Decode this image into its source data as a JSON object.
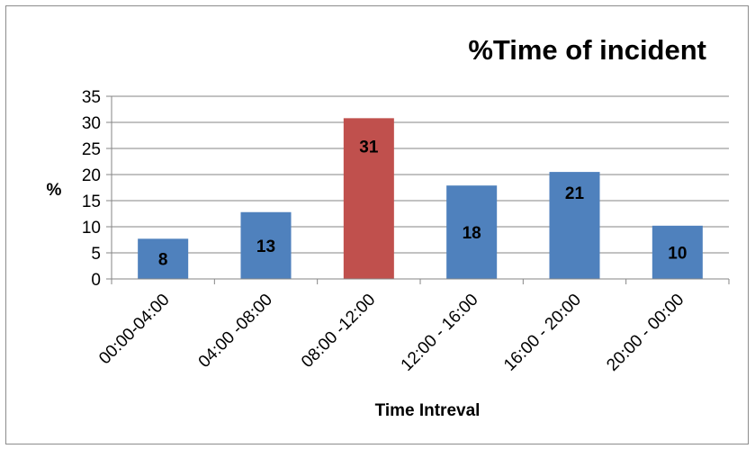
{
  "chart_data": {
    "type": "bar",
    "title": "%Time of incident",
    "xlabel": "Time Intreval",
    "ylabel": "%",
    "ylim": [
      0,
      35
    ],
    "yticks": [
      0,
      5,
      10,
      15,
      20,
      25,
      30,
      35
    ],
    "grid": true,
    "categories": [
      "00:00-04:00",
      "04:00 -08:00",
      "08:00 -12:00",
      "12:00 - 16:00",
      "16:00 - 20:00",
      "20:00 - 00:00"
    ],
    "values": [
      7.7,
      12.8,
      30.8,
      17.9,
      20.5,
      10.2
    ],
    "data_labels": [
      "8",
      "13",
      "31",
      "18",
      "21",
      "10"
    ],
    "colors": [
      "#4f81bd",
      "#4f81bd",
      "#c0504d",
      "#4f81bd",
      "#4f81bd",
      "#4f81bd"
    ]
  }
}
